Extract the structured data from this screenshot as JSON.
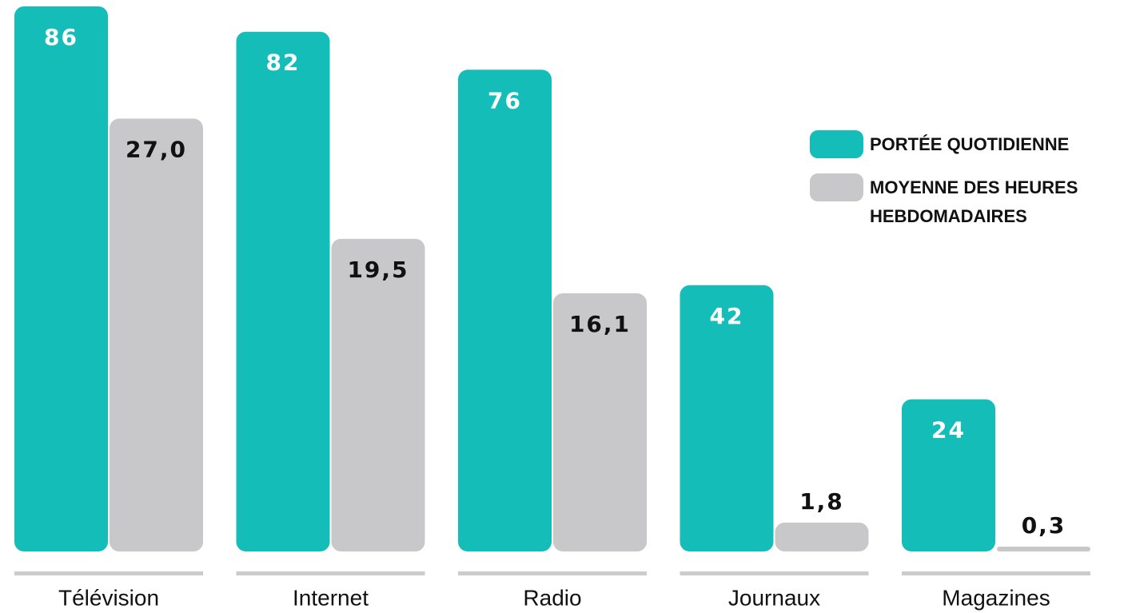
{
  "chart_data": {
    "type": "bar",
    "categories": [
      "Télévision",
      "Internet",
      "Radio",
      "Journaux",
      "Magazines"
    ],
    "series": [
      {
        "name": "PORTÉE QUOTIDIENNE",
        "color": "#14bdb8",
        "values": [
          86,
          82,
          76,
          42,
          24
        ]
      },
      {
        "name": "MOYENNE DES HEURES HEBDOMADAIRES",
        "color": "#c8c8ca",
        "axis": "y2",
        "values": [
          27.0,
          19.5,
          16.1,
          1.8,
          0.3
        ],
        "value_labels": [
          "27,0",
          "19,5",
          "16,1",
          "1,8",
          "0,3"
        ]
      }
    ],
    "ylim": [
      0,
      86
    ],
    "y2lim": [
      0,
      34
    ],
    "legend": "right"
  }
}
